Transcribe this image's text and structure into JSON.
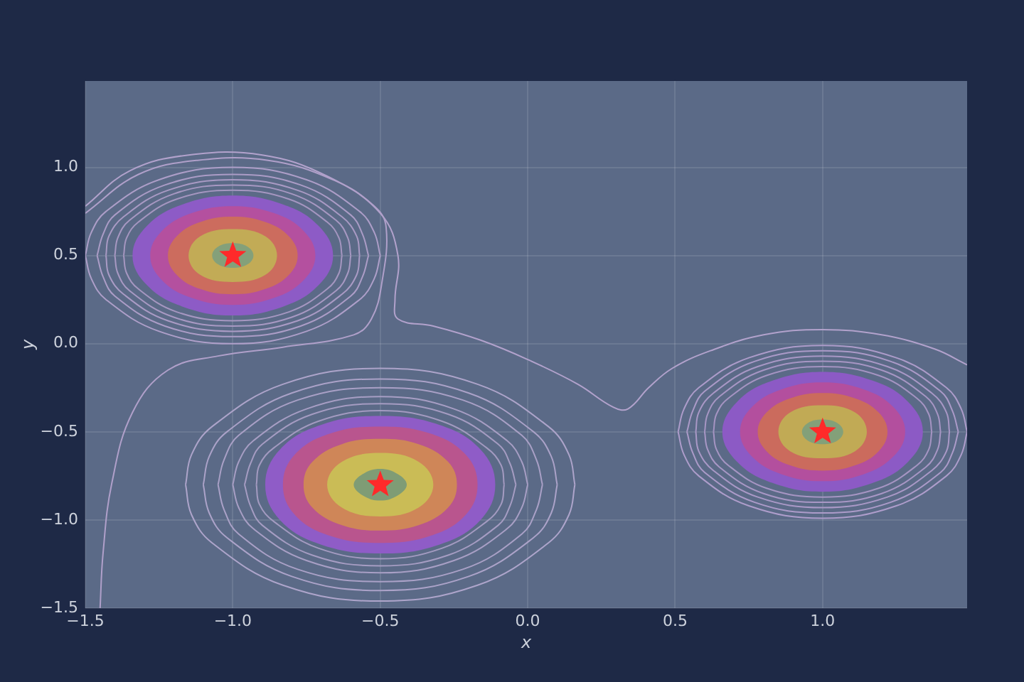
{
  "chart_data": {
    "type": "line",
    "xlabel": "x",
    "ylabel": "y",
    "xlim": [
      -1.5,
      1.49
    ],
    "ylim": [
      -1.5,
      1.49
    ],
    "xticks": [
      {
        "value": -1.5,
        "label": "−1.5"
      },
      {
        "value": -1,
        "label": "−1.0"
      },
      {
        "value": -0.5,
        "label": "−0.5"
      },
      {
        "value": 0,
        "label": "0.0"
      },
      {
        "value": 0.5,
        "label": "0.5"
      },
      {
        "value": 1,
        "label": "1.0"
      }
    ],
    "yticks": [
      {
        "value": -1.5,
        "label": "−1.5"
      },
      {
        "value": -1,
        "label": "−1.0"
      },
      {
        "value": -0.5,
        "label": "−0.5"
      },
      {
        "value": 0,
        "label": "0.0"
      },
      {
        "value": 0.5,
        "label": "0.5"
      },
      {
        "value": 1,
        "label": "1.0"
      }
    ],
    "grid": true,
    "series": [
      {
        "type": "area",
        "color": "#8d5bc6",
        "x": [
          -0.66,
          -0.71,
          -0.83,
          -1.0,
          -1.17,
          -1.29,
          -1.34,
          -1.29,
          -1.17,
          -1.0,
          -0.83,
          -0.71,
          -0.66
        ],
        "values": [
          0.5,
          0.67,
          0.79,
          0.84,
          0.79,
          0.67,
          0.5,
          0.33,
          0.21,
          0.16,
          0.21,
          0.33,
          0.5
        ]
      },
      {
        "type": "area",
        "color": "#b4509f",
        "x": [
          -0.72,
          -0.76,
          -0.86,
          -1.0,
          -1.14,
          -1.24,
          -1.28,
          -1.24,
          -1.14,
          -1.0,
          -0.86,
          -0.76,
          -0.72
        ],
        "values": [
          0.5,
          0.64,
          0.74,
          0.78,
          0.74,
          0.64,
          0.5,
          0.36,
          0.26,
          0.22,
          0.26,
          0.36,
          0.5
        ]
      },
      {
        "type": "area",
        "color": "#cc6c5e",
        "x": [
          -0.78,
          -0.81,
          -0.89,
          -1.0,
          -1.11,
          -1.19,
          -1.22,
          -1.19,
          -1.11,
          -1.0,
          -0.89,
          -0.81,
          -0.78
        ],
        "values": [
          0.5,
          0.61,
          0.69,
          0.72,
          0.69,
          0.61,
          0.5,
          0.39,
          0.31,
          0.28,
          0.31,
          0.39,
          0.5
        ]
      },
      {
        "type": "area",
        "color": "#c2ab56",
        "x": [
          -0.85,
          -0.89,
          -1.0,
          -1.11,
          -1.15,
          -1.11,
          -1.0,
          -0.89,
          -0.85
        ],
        "values": [
          0.5,
          0.61,
          0.65,
          0.61,
          0.5,
          0.39,
          0.35,
          0.39,
          0.5
        ]
      },
      {
        "type": "area",
        "color": "#84a07a",
        "x": [
          -0.93,
          -0.95,
          -1.0,
          -1.05,
          -1.07,
          -1.05,
          -1.0,
          -0.95,
          -0.93
        ],
        "values": [
          0.5,
          0.55,
          0.57,
          0.55,
          0.5,
          0.45,
          0.43,
          0.45,
          0.5
        ]
      },
      {
        "type": "area",
        "color": "#8f5cc7",
        "x": [
          -0.11,
          -0.16,
          -0.3,
          -0.5,
          -0.7,
          -0.84,
          -0.89,
          -0.84,
          -0.7,
          -0.5,
          -0.3,
          -0.16,
          -0.11
        ],
        "values": [
          -0.8,
          -0.6,
          -0.46,
          -0.41,
          -0.46,
          -0.6,
          -0.8,
          -1.0,
          -1.14,
          -1.19,
          -1.14,
          -1.0,
          -0.8
        ]
      },
      {
        "type": "area",
        "color": "#b9558e",
        "x": [
          -0.17,
          -0.21,
          -0.33,
          -0.5,
          -0.67,
          -0.79,
          -0.83,
          -0.79,
          -0.67,
          -0.5,
          -0.33,
          -0.21,
          -0.17
        ],
        "values": [
          -0.8,
          -0.63,
          -0.51,
          -0.47,
          -0.51,
          -0.63,
          -0.8,
          -0.97,
          -1.09,
          -1.13,
          -1.09,
          -0.97,
          -0.8
        ]
      },
      {
        "type": "area",
        "color": "#cf8658",
        "x": [
          -0.24,
          -0.27,
          -0.37,
          -0.5,
          -0.63,
          -0.73,
          -0.76,
          -0.73,
          -0.63,
          -0.5,
          -0.37,
          -0.27,
          -0.24
        ],
        "values": [
          -0.8,
          -0.67,
          -0.57,
          -0.54,
          -0.57,
          -0.67,
          -0.8,
          -0.93,
          -1.03,
          -1.06,
          -1.03,
          -0.93,
          -0.8
        ]
      },
      {
        "type": "area",
        "color": "#cabc56",
        "x": [
          -0.32,
          -0.37,
          -0.5,
          -0.63,
          -0.68,
          -0.63,
          -0.5,
          -0.37,
          -0.32
        ],
        "values": [
          -0.8,
          -0.67,
          -0.62,
          -0.67,
          -0.8,
          -0.93,
          -0.98,
          -0.93,
          -0.8
        ]
      },
      {
        "type": "area",
        "color": "#7f9c75",
        "x": [
          -0.41,
          -0.44,
          -0.5,
          -0.56,
          -0.59,
          -0.56,
          -0.5,
          -0.44,
          -0.41
        ],
        "values": [
          -0.8,
          -0.74,
          -0.71,
          -0.74,
          -0.8,
          -0.86,
          -0.89,
          -0.86,
          -0.8
        ]
      },
      {
        "type": "area",
        "color": "#8c5ac5",
        "x": [
          1.34,
          1.29,
          1.17,
          1.0,
          0.83,
          0.71,
          0.66,
          0.71,
          0.83,
          1.0,
          1.17,
          1.29,
          1.34
        ],
        "values": [
          -0.5,
          -0.33,
          -0.21,
          -0.16,
          -0.21,
          -0.33,
          -0.5,
          -0.67,
          -0.79,
          -0.84,
          -0.79,
          -0.67,
          -0.5
        ]
      },
      {
        "type": "area",
        "color": "#b34f9e",
        "x": [
          1.28,
          1.24,
          1.14,
          1.0,
          0.86,
          0.76,
          0.72,
          0.76,
          0.86,
          1.0,
          1.14,
          1.24,
          1.28
        ],
        "values": [
          -0.5,
          -0.36,
          -0.26,
          -0.22,
          -0.26,
          -0.36,
          -0.5,
          -0.64,
          -0.74,
          -0.78,
          -0.74,
          -0.64,
          -0.5
        ]
      },
      {
        "type": "area",
        "color": "#cb6b5d",
        "x": [
          1.22,
          1.19,
          1.11,
          1.0,
          0.89,
          0.81,
          0.78,
          0.81,
          0.89,
          1.0,
          1.11,
          1.19,
          1.22
        ],
        "values": [
          -0.5,
          -0.39,
          -0.31,
          -0.28,
          -0.31,
          -0.39,
          -0.5,
          -0.61,
          -0.69,
          -0.72,
          -0.69,
          -0.61,
          -0.5
        ]
      },
      {
        "type": "area",
        "color": "#c1aa55",
        "x": [
          1.15,
          1.11,
          1.0,
          0.89,
          0.85,
          0.89,
          1.0,
          1.11,
          1.15
        ],
        "values": [
          -0.5,
          -0.39,
          -0.35,
          -0.39,
          -0.5,
          -0.61,
          -0.65,
          -0.61,
          -0.5
        ]
      },
      {
        "type": "area",
        "color": "#83a079",
        "x": [
          1.07,
          1.05,
          1.0,
          0.95,
          0.93,
          0.95,
          1.0,
          1.05,
          1.07
        ],
        "values": [
          -0.5,
          -0.45,
          -0.43,
          -0.45,
          -0.5,
          -0.55,
          -0.57,
          -0.55,
          -0.5
        ]
      },
      {
        "color": "#a596c0",
        "x": [
          -1.37,
          -1.36,
          -1.32,
          -1.19,
          -1.0,
          -0.81,
          -0.68,
          -0.64,
          -0.63
        ],
        "values": [
          0.5,
          0.6,
          0.69,
          0.82,
          0.87,
          0.82,
          0.69,
          0.6,
          0.5
        ]
      },
      {
        "color": "#a697c1",
        "x": [
          -1.37,
          -1.36,
          -1.32,
          -1.19,
          -1.0,
          -0.81,
          -0.68,
          -0.64,
          -0.63
        ],
        "values": [
          0.5,
          0.4,
          0.31,
          0.18,
          0.13,
          0.18,
          0.31,
          0.4,
          0.5
        ]
      },
      {
        "color": "#a798c2",
        "x": [
          -1.4,
          -1.39,
          -1.35,
          -1.2,
          -1.0,
          -0.8,
          -0.65,
          -0.61,
          -0.6
        ],
        "values": [
          0.5,
          0.6,
          0.7,
          0.85,
          0.9,
          0.85,
          0.7,
          0.6,
          0.5
        ]
      },
      {
        "color": "#a899c3",
        "x": [
          -1.4,
          -1.39,
          -1.35,
          -1.2,
          -1.0,
          -0.8,
          -0.65,
          -0.61,
          -0.6
        ],
        "values": [
          0.5,
          0.4,
          0.3,
          0.15,
          0.1,
          0.15,
          0.3,
          0.4,
          0.5
        ]
      },
      {
        "color": "#a99ac4",
        "x": [
          -1.43,
          -1.42,
          -1.37,
          -1.22,
          -1.0,
          -0.78,
          -0.63,
          -0.58,
          -0.57
        ],
        "values": [
          0.5,
          0.61,
          0.72,
          0.87,
          0.93,
          0.87,
          0.72,
          0.61,
          0.5
        ]
      },
      {
        "color": "#aa9bc5",
        "x": [
          -1.43,
          -1.42,
          -1.37,
          -1.22,
          -1.0,
          -0.78,
          -0.63,
          -0.58,
          -0.57
        ],
        "values": [
          0.5,
          0.39,
          0.28,
          0.13,
          0.07,
          0.13,
          0.28,
          0.39,
          0.5
        ]
      },
      {
        "color": "#ab9cc6",
        "x": [
          -1.46,
          -1.44,
          -1.4,
          -1.23,
          -1.0,
          -0.77,
          -0.6,
          -0.56,
          -0.54
        ],
        "values": [
          0.5,
          0.62,
          0.73,
          0.9,
          0.96,
          0.9,
          0.73,
          0.62,
          0.5
        ]
      },
      {
        "color": "#ac9dc7",
        "x": [
          -1.46,
          -1.44,
          -1.4,
          -1.23,
          -1.0,
          -0.77,
          -0.6,
          -0.56,
          -0.54
        ],
        "values": [
          0.5,
          0.38,
          0.27,
          0.1,
          0.04,
          0.1,
          0.27,
          0.38,
          0.5
        ]
      },
      {
        "color": "#ad9ec8",
        "x": [
          -1.5,
          -1.48,
          -1.43,
          -1.25,
          -1.0,
          -0.75,
          -0.57,
          -0.52,
          -0.5
        ],
        "values": [
          0.5,
          0.63,
          0.75,
          0.93,
          1.0,
          0.93,
          0.75,
          0.63,
          0.5
        ]
      },
      {
        "color": "#ae9fc9",
        "x": [
          -1.5,
          -1.48,
          -1.43,
          -1.25,
          -1.0,
          -0.75,
          -0.57,
          -0.52,
          -0.5
        ],
        "values": [
          0.5,
          0.37,
          0.25,
          0.07,
          0.0,
          0.07,
          0.25,
          0.37,
          0.5
        ]
      },
      {
        "color": "#a594c2",
        "x": [
          0.63,
          0.64,
          0.68,
          0.81,
          1.0,
          1.19,
          1.32,
          1.36,
          1.37
        ],
        "values": [
          -0.5,
          -0.4,
          -0.31,
          -0.18,
          -0.13,
          -0.18,
          -0.31,
          -0.4,
          -0.5
        ]
      },
      {
        "color": "#a695c3",
        "x": [
          0.63,
          0.64,
          0.68,
          0.81,
          1.0,
          1.19,
          1.32,
          1.36,
          1.37
        ],
        "values": [
          -0.5,
          -0.6,
          -0.69,
          -0.82,
          -0.87,
          -0.82,
          -0.69,
          -0.6,
          -0.5
        ]
      },
      {
        "color": "#a796c4",
        "x": [
          0.6,
          0.61,
          0.65,
          0.8,
          1.0,
          1.2,
          1.35,
          1.39,
          1.4
        ],
        "values": [
          -0.5,
          -0.4,
          -0.3,
          -0.15,
          -0.1,
          -0.15,
          -0.3,
          -0.4,
          -0.5
        ]
      },
      {
        "color": "#a897c5",
        "x": [
          0.6,
          0.61,
          0.65,
          0.8,
          1.0,
          1.2,
          1.35,
          1.39,
          1.4
        ],
        "values": [
          -0.5,
          -0.6,
          -0.7,
          -0.85,
          -0.9,
          -0.85,
          -0.7,
          -0.6,
          -0.5
        ]
      },
      {
        "color": "#a998c6",
        "x": [
          0.57,
          0.58,
          0.63,
          0.78,
          1.0,
          1.22,
          1.37,
          1.42,
          1.43
        ],
        "values": [
          -0.5,
          -0.39,
          -0.28,
          -0.13,
          -0.07,
          -0.13,
          -0.28,
          -0.39,
          -0.5
        ]
      },
      {
        "color": "#aa99c7",
        "x": [
          0.57,
          0.58,
          0.63,
          0.78,
          1.0,
          1.22,
          1.37,
          1.42,
          1.43
        ],
        "values": [
          -0.5,
          -0.61,
          -0.72,
          -0.87,
          -0.93,
          -0.87,
          -0.72,
          -0.61,
          -0.5
        ]
      },
      {
        "color": "#ab9ac8",
        "x": [
          0.54,
          0.56,
          0.6,
          0.77,
          1.0,
          1.23,
          1.4,
          1.44,
          1.46
        ],
        "values": [
          -0.5,
          -0.38,
          -0.27,
          -0.1,
          -0.04,
          -0.1,
          -0.27,
          -0.38,
          -0.5
        ]
      },
      {
        "color": "#ac9bc9",
        "x": [
          0.54,
          0.56,
          0.6,
          0.77,
          1.0,
          1.23,
          1.4,
          1.44,
          1.46
        ],
        "values": [
          -0.5,
          -0.62,
          -0.73,
          -0.9,
          -0.96,
          -0.9,
          -0.73,
          -0.62,
          -0.5
        ]
      },
      {
        "color": "#ad9cca",
        "x": [
          0.51,
          0.53,
          0.58,
          0.75,
          1.0,
          1.25,
          1.42,
          1.47,
          1.49
        ],
        "values": [
          -0.5,
          -0.37,
          -0.25,
          -0.08,
          -0.01,
          -0.08,
          -0.25,
          -0.37,
          -0.5
        ]
      },
      {
        "color": "#ae9dcb",
        "x": [
          0.51,
          0.53,
          0.58,
          0.75,
          1.0,
          1.25,
          1.42,
          1.47,
          1.49
        ],
        "values": [
          -0.5,
          -0.63,
          -0.75,
          -0.92,
          -0.99,
          -0.92,
          -0.75,
          -0.63,
          -0.5
        ]
      },
      {
        "color": "#a39ac0",
        "x": [
          -0.92,
          -0.91,
          -0.86,
          -0.71,
          -0.5,
          -0.29,
          -0.14,
          -0.09,
          -0.08
        ],
        "values": [
          -0.8,
          -0.69,
          -0.59,
          -0.44,
          -0.38,
          -0.44,
          -0.59,
          -0.69,
          -0.8
        ]
      },
      {
        "color": "#a49bc1",
        "x": [
          -0.92,
          -0.91,
          -0.86,
          -0.71,
          -0.5,
          -0.29,
          -0.14,
          -0.09,
          -0.08
        ],
        "values": [
          -0.8,
          -0.91,
          -1.01,
          -1.16,
          -1.22,
          -1.16,
          -1.01,
          -0.91,
          -0.8
        ]
      },
      {
        "color": "#a59cc2",
        "x": [
          -0.96,
          -0.94,
          -0.9,
          -0.73,
          -0.5,
          -0.27,
          -0.1,
          -0.06,
          -0.04
        ],
        "values": [
          -0.8,
          -0.68,
          -0.57,
          -0.4,
          -0.34,
          -0.4,
          -0.57,
          -0.68,
          -0.8
        ]
      },
      {
        "color": "#a69dc3",
        "x": [
          -0.96,
          -0.94,
          -0.9,
          -0.73,
          -0.5,
          -0.27,
          -0.1,
          -0.06,
          -0.04
        ],
        "values": [
          -0.8,
          -0.92,
          -1.03,
          -1.2,
          -1.26,
          -1.2,
          -1.03,
          -0.92,
          -0.8
        ]
      },
      {
        "color": "#a79ec4",
        "x": [
          -1.0,
          -0.98,
          -0.93,
          -0.75,
          -0.5,
          -0.25,
          -0.07,
          -0.02,
          0.0
        ],
        "values": [
          -0.8,
          -0.67,
          -0.55,
          -0.37,
          -0.3,
          -0.37,
          -0.55,
          -0.67,
          -0.8
        ]
      },
      {
        "color": "#a89fc5",
        "x": [
          -1.0,
          -0.98,
          -0.93,
          -0.75,
          -0.5,
          -0.25,
          -0.07,
          -0.02,
          0.0
        ],
        "values": [
          -0.8,
          -0.93,
          -1.05,
          -1.23,
          -1.3,
          -1.23,
          -1.05,
          -0.93,
          -0.8
        ]
      },
      {
        "color": "#a9a0c6",
        "x": [
          -1.05,
          -1.03,
          -0.98,
          -0.78,
          -0.5,
          -0.22,
          -0.02,
          0.03,
          0.05
        ],
        "values": [
          -0.8,
          -0.66,
          -0.52,
          -0.32,
          -0.25,
          -0.32,
          -0.52,
          -0.66,
          -0.8
        ]
      },
      {
        "color": "#aaa1c7",
        "x": [
          -1.05,
          -1.03,
          -0.98,
          -0.78,
          -0.5,
          -0.22,
          -0.02,
          0.03,
          0.05
        ],
        "values": [
          -0.8,
          -0.94,
          -1.08,
          -1.28,
          -1.35,
          -1.28,
          -1.08,
          -0.94,
          -0.8
        ]
      },
      {
        "color": "#aba2c8",
        "x": [
          -1.1,
          -1.08,
          -1.02,
          -0.8,
          -0.5,
          -0.2,
          0.02,
          0.08,
          0.1
        ],
        "values": [
          -0.8,
          -0.64,
          -0.5,
          -0.28,
          -0.2,
          -0.28,
          -0.5,
          -0.64,
          -0.8
        ]
      },
      {
        "color": "#aca3c9",
        "x": [
          -1.1,
          -1.08,
          -1.02,
          -0.8,
          -0.5,
          -0.2,
          0.02,
          0.08,
          0.1
        ],
        "values": [
          -0.8,
          -0.96,
          -1.1,
          -1.32,
          -1.4,
          -1.32,
          -1.1,
          -0.96,
          -0.8
        ]
      },
      {
        "color": "#ada4ca",
        "x": [
          -1.16,
          -1.14,
          -1.07,
          -0.83,
          -0.5,
          -0.17,
          0.07,
          0.14,
          0.16
        ],
        "values": [
          -0.8,
          -0.63,
          -0.47,
          -0.23,
          -0.14,
          -0.23,
          -0.47,
          -0.63,
          -0.8
        ]
      },
      {
        "color": "#aea5cb",
        "x": [
          -1.16,
          -1.14,
          -1.07,
          -0.83,
          -0.5,
          -0.17,
          0.07,
          0.14,
          0.16
        ],
        "values": [
          -0.8,
          -0.97,
          -1.13,
          -1.37,
          -1.46,
          -1.37,
          -1.13,
          -0.97,
          -0.8
        ]
      },
      {
        "color": "#b2a2cc",
        "x": [
          -1.5,
          -1.35,
          -1.15,
          -0.9,
          -0.68,
          -0.5,
          -0.44,
          -0.45,
          -0.44,
          -0.32,
          -0.16,
          0.0,
          0.17,
          0.29,
          0.34,
          0.41,
          0.49,
          0.62,
          0.8,
          1.0,
          1.2,
          1.38,
          1.49
        ],
        "values": [
          0.78,
          0.98,
          1.07,
          1.07,
          0.95,
          0.74,
          0.5,
          0.25,
          0.14,
          0.1,
          0.02,
          -0.09,
          -0.23,
          -0.36,
          -0.37,
          -0.25,
          -0.14,
          -0.04,
          0.05,
          0.08,
          0.05,
          -0.03,
          -0.12
        ]
      },
      {
        "color": "#b0a0ca",
        "x": [
          -1.5,
          -1.32,
          -1.12,
          -0.88,
          -0.66,
          -0.52,
          -0.48,
          -0.495,
          -0.53,
          -0.59,
          -0.83,
          -1.05,
          -1.22,
          -1.34,
          -1.41,
          -1.44,
          -1.45
        ],
        "values": [
          0.74,
          0.96,
          1.04,
          1.04,
          0.93,
          0.78,
          0.66,
          0.34,
          0.14,
          0.05,
          -0.02,
          -0.07,
          -0.15,
          -0.39,
          -0.79,
          -1.19,
          -1.5
        ]
      },
      {
        "type": "scatter",
        "marker": "star",
        "color": "#ff2a2a",
        "x": [
          -1.0,
          -0.5,
          1.0
        ],
        "values": [
          0.5,
          -0.8,
          -0.5
        ]
      }
    ]
  }
}
